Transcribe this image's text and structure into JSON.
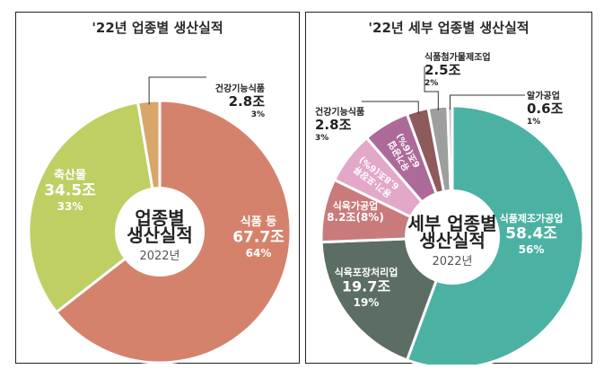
{
  "chart_data": [
    {
      "type": "pie",
      "title": "'22년 업종별 생산실적",
      "center_title_line1": "업종별",
      "center_title_line2": "생산실적",
      "center_year": "2022년",
      "unit": "조",
      "slices": [
        {
          "name": "식품 등",
          "value": 67.7,
          "value_label": "67.7조",
          "percent": 64,
          "percent_label": "64%",
          "color": "#d5826d"
        },
        {
          "name": "축산물",
          "value": 34.5,
          "value_label": "34.5조",
          "percent": 33,
          "percent_label": "33%",
          "color": "#bfcf63"
        },
        {
          "name": "건강기능식품",
          "value": 2.8,
          "value_label": "2.8조",
          "percent": 3,
          "percent_label": "3%",
          "color": "#d8a56b"
        }
      ]
    },
    {
      "type": "pie",
      "title": "'22년 세부 업종별 생산실적",
      "center_title_line1": "세부 업종별",
      "center_title_line2": "생산실적",
      "center_year": "2022년",
      "unit": "조",
      "slices": [
        {
          "name": "식품제조가공업",
          "value": 58.4,
          "value_label": "58.4조",
          "percent": 56,
          "percent_label": "56%",
          "color": "#4bb2a3"
        },
        {
          "name": "식육포장처리업",
          "value": 19.7,
          "value_label": "19.7조",
          "percent": 19,
          "percent_label": "19%",
          "color": "#5c6e63"
        },
        {
          "name": "식육가공업",
          "value": 8.2,
          "value_label": "8.2조(8%)",
          "percent": 8,
          "percent_label": "",
          "color": "#c97a7b"
        },
        {
          "name": "용기·포장류",
          "value": 6.8,
          "value_label": "6.8조(6%)",
          "percent": 6,
          "percent_label": "",
          "color": "#e3a7c8"
        },
        {
          "name": "유가공업",
          "value": 6,
          "value_label": "6조(6%)",
          "percent": 6,
          "percent_label": "",
          "color": "#ad6a99"
        },
        {
          "name": "건강기능식품",
          "value": 2.8,
          "value_label": "2.8조",
          "percent": 3,
          "percent_label": "3%",
          "color": "#8e5a5c"
        },
        {
          "name": "식품첨가물제조업",
          "value": 2.5,
          "value_label": "2.5조",
          "percent": 2,
          "percent_label": "2%",
          "color": "#9e9e9e"
        },
        {
          "name": "알가공업",
          "value": 0.6,
          "value_label": "0.6조",
          "percent": 1,
          "percent_label": "1%",
          "color": "#c2c2c2"
        }
      ]
    }
  ]
}
